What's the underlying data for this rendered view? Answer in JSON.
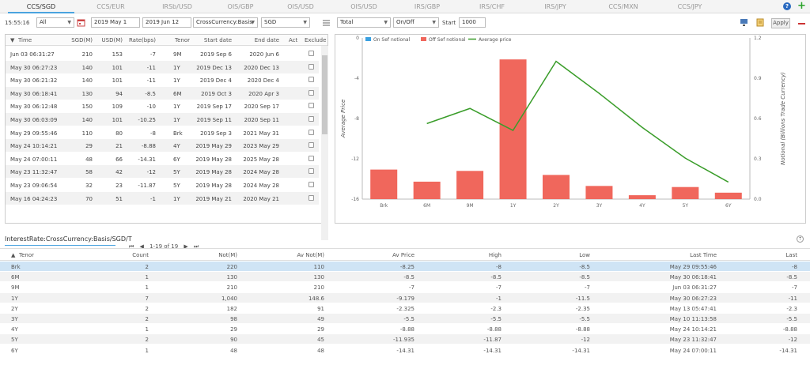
{
  "tabs": [
    "CCS/SGD",
    "CCS/EUR",
    "IRSb/USD",
    "OIS/GBP",
    "OIS/USD",
    "OIS/USD",
    "IRS/GBP",
    "IRS/CHF",
    "IRS/JPY",
    "CCS/MXN",
    "CCS/JPY"
  ],
  "toolbar": {
    "time": "15:55:16",
    "scope": "All",
    "date_from": "2019 May 1",
    "date_to": "2019 Jun 12",
    "product": "CrossCurrency:Basis",
    "currency": "SGD",
    "total": "Total",
    "onoff": "On/Off",
    "start_label": "Start",
    "start_value": "1000",
    "apply_label": "Apply"
  },
  "trades": {
    "headers": [
      "Time",
      "SGD(M)",
      "USD(M)",
      "Rate(bps)",
      "Tenor",
      "Start date",
      "End date",
      "Act",
      "Exclude"
    ],
    "rows": [
      [
        "Jun 03 06:31:27",
        "210",
        "153",
        "-7",
        "9M",
        "2019 Sep 6",
        "2020 Jun 6"
      ],
      [
        "May 30 06:27:23",
        "140",
        "101",
        "-11",
        "1Y",
        "2019 Dec 13",
        "2020 Dec 13"
      ],
      [
        "May 30 06:21:32",
        "140",
        "101",
        "-11",
        "1Y",
        "2019 Dec 4",
        "2020 Dec 4"
      ],
      [
        "May 30 06:18:41",
        "130",
        "94",
        "-8.5",
        "6M",
        "2019 Oct 3",
        "2020 Apr 3"
      ],
      [
        "May 30 06:12:48",
        "150",
        "109",
        "-10",
        "1Y",
        "2019 Sep 17",
        "2020 Sep 17"
      ],
      [
        "May 30 06:03:09",
        "140",
        "101",
        "-10.25",
        "1Y",
        "2019 Sep 11",
        "2020 Sep 11"
      ],
      [
        "May 29 09:55:46",
        "110",
        "80",
        "-8",
        "Brk",
        "2019 Sep 3",
        "2021 May 31"
      ],
      [
        "May 24 10:14:21",
        "29",
        "21",
        "-8.88",
        "4Y",
        "2019 May 29",
        "2023 May 29"
      ],
      [
        "May 24 07:00:11",
        "48",
        "66",
        "-14.31",
        "6Y",
        "2019 May 28",
        "2025 May 28"
      ],
      [
        "May 23 11:32:47",
        "58",
        "42",
        "-12",
        "5Y",
        "2019 May 28",
        "2024 May 28"
      ],
      [
        "May 23 09:06:54",
        "32",
        "23",
        "-11.87",
        "5Y",
        "2019 May 28",
        "2024 May 28"
      ],
      [
        "May 16 04:24:23",
        "70",
        "51",
        "-1",
        "1Y",
        "2019 May 21",
        "2020 May 21"
      ]
    ],
    "pager": "1-19 of 19"
  },
  "chart_data": {
    "type": "bar",
    "categories": [
      "Brk",
      "6M",
      "9M",
      "1Y",
      "2Y",
      "3Y",
      "4Y",
      "5Y",
      "6Y"
    ],
    "series": [
      {
        "name": "On Sef notional",
        "values": [
          0,
          0,
          0,
          0,
          0,
          0,
          0,
          0,
          0
        ]
      },
      {
        "name": "Off Sef notional",
        "values": [
          0.22,
          0.13,
          0.21,
          1.04,
          0.18,
          0.098,
          0.029,
          0.09,
          0.048
        ]
      },
      {
        "name": "Average price",
        "values": [
          null,
          -8.5,
          -7,
          -9.179,
          -2.325,
          -5.5,
          -8.88,
          -11.935,
          -14.31
        ]
      }
    ],
    "ylabel": "Average Price",
    "y2label": "Notional (Billions Trade Currency)",
    "ylim": [
      -16,
      0
    ],
    "y_ticks": [
      "0",
      "-4",
      "-8",
      "-12",
      "-16"
    ],
    "y2lim": [
      0,
      1.2
    ],
    "y2_ticks": [
      "1.2",
      "0.9",
      "0.6",
      "0.3",
      "0.0"
    ],
    "legend": "top-left",
    "colors": {
      "on_sef": "#3aa0e0",
      "off_sef": "#f0675c",
      "avg": "#3a9d2a"
    }
  },
  "summary": {
    "title": "InterestRate:CrossCurrency:Basis/SGD/T",
    "headers": [
      "Tenor",
      "Count",
      "Not(M)",
      "Av Not(M)",
      "Av Price",
      "High",
      "Low",
      "Last Time",
      "Last"
    ],
    "rows": [
      [
        "Brk",
        "2",
        "220",
        "110",
        "-8.25",
        "-8",
        "-8.5",
        "May 29 09:55:46",
        "-8"
      ],
      [
        "6M",
        "1",
        "130",
        "130",
        "-8.5",
        "-8.5",
        "-8.5",
        "May 30 06:18:41",
        "-8.5"
      ],
      [
        "9M",
        "1",
        "210",
        "210",
        "-7",
        "-7",
        "-7",
        "Jun 03 06:31:27",
        "-7"
      ],
      [
        "1Y",
        "7",
        "1,040",
        "148.6",
        "-9.179",
        "-1",
        "-11.5",
        "May 30 06:27:23",
        "-11"
      ],
      [
        "2Y",
        "2",
        "182",
        "91",
        "-2.325",
        "-2.3",
        "-2.35",
        "May 13 05:47:41",
        "-2.3"
      ],
      [
        "3Y",
        "2",
        "98",
        "49",
        "-5.5",
        "-5.5",
        "-5.5",
        "May 10 11:13:58",
        "-5.5"
      ],
      [
        "4Y",
        "1",
        "29",
        "29",
        "-8.88",
        "-8.88",
        "-8.88",
        "May 24 10:14:21",
        "-8.88"
      ],
      [
        "5Y",
        "2",
        "90",
        "45",
        "-11.935",
        "-11.87",
        "-12",
        "May 23 11:32:47",
        "-12"
      ],
      [
        "6Y",
        "1",
        "48",
        "48",
        "-14.31",
        "-14.31",
        "-14.31",
        "May 24 07:00:11",
        "-14.31"
      ]
    ]
  }
}
